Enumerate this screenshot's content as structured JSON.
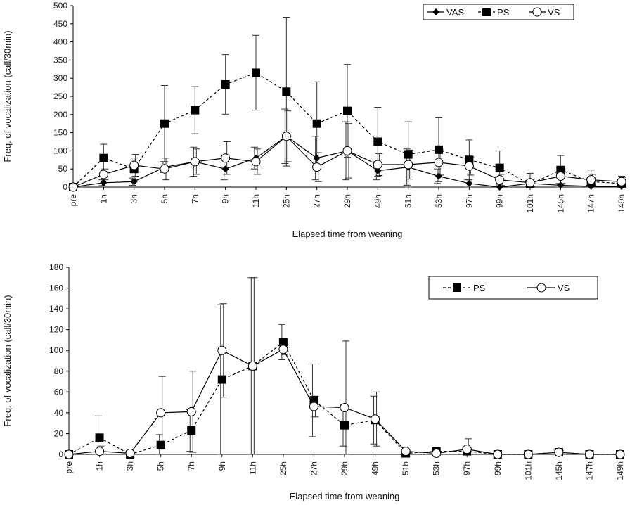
{
  "chart_data": [
    {
      "type": "line",
      "title": "",
      "xlabel": "Elapsed time from weaning",
      "ylabel": "Freq. of vocalization (call/30min)",
      "ylim": [
        0,
        500
      ],
      "yticks": [
        0,
        50,
        100,
        150,
        200,
        250,
        300,
        350,
        400,
        450,
        500
      ],
      "categories": [
        "pre",
        "1h",
        "3h",
        "5h",
        "7h",
        "9h",
        "11h",
        "25h",
        "27h",
        "29h",
        "49h",
        "51h",
        "53h",
        "97h",
        "99h",
        "101h",
        "145h",
        "147h",
        "149h"
      ],
      "legend_position": "top-right",
      "grid": false,
      "series": [
        {
          "name": "VAS",
          "marker": "diamond",
          "line": "solid",
          "values": [
            0,
            12,
            15,
            55,
            70,
            50,
            80,
            140,
            80,
            100,
            45,
            55,
            30,
            10,
            0,
            10,
            5,
            2,
            2
          ],
          "errors": [
            0,
            8,
            10,
            15,
            40,
            30,
            30,
            75,
            60,
            80,
            25,
            50,
            20,
            10,
            0,
            8,
            5,
            3,
            3
          ]
        },
        {
          "name": "PS",
          "marker": "square",
          "line": "dashed",
          "values": [
            0,
            80,
            50,
            175,
            212,
            283,
            315,
            263,
            175,
            210,
            125,
            90,
            103,
            75,
            53,
            8,
            47,
            15,
            10
          ],
          "errors": [
            0,
            38,
            30,
            105,
            65,
            82,
            103,
            205,
            115,
            128,
            95,
            90,
            88,
            55,
            47,
            30,
            40,
            32,
            20
          ]
        },
        {
          "name": "VS",
          "marker": "circle",
          "line": "solid",
          "values": [
            0,
            35,
            60,
            50,
            70,
            80,
            70,
            140,
            55,
            100,
            62,
            62,
            68,
            58,
            20,
            12,
            30,
            20,
            15
          ],
          "errors": [
            0,
            15,
            30,
            30,
            35,
            45,
            35,
            70,
            40,
            75,
            30,
            40,
            35,
            25,
            15,
            10,
            20,
            15,
            12
          ]
        }
      ]
    },
    {
      "type": "line",
      "title": "",
      "xlabel": "Elapsed time from weaning",
      "ylabel": "Freq. of vocalization (call/30min)",
      "ylim": [
        0,
        180
      ],
      "yticks": [
        0,
        20,
        40,
        60,
        80,
        100,
        120,
        140,
        160,
        180
      ],
      "categories": [
        "pre",
        "1h",
        "3h",
        "5h",
        "7h",
        "9h",
        "11h",
        "25h",
        "27h",
        "29h",
        "49h",
        "51h",
        "53h",
        "97h",
        "99h",
        "101h",
        "145h",
        "147h",
        "149h"
      ],
      "legend_position": "top-right",
      "grid": false,
      "series": [
        {
          "name": "PS",
          "marker": "square",
          "line": "dashed",
          "values": [
            0,
            16,
            0,
            9,
            23,
            72,
            85,
            108,
            52,
            28,
            33,
            1,
            3,
            3,
            0,
            0,
            2,
            0,
            0
          ],
          "errors": [
            0,
            21,
            0,
            10,
            20,
            72,
            85,
            17,
            35,
            20,
            23,
            1,
            2,
            3,
            0,
            0,
            2,
            0,
            0
          ]
        },
        {
          "name": "VS",
          "marker": "circle",
          "line": "solid",
          "values": [
            0,
            3,
            1,
            40,
            41,
            100,
            85,
            101,
            46,
            45,
            34,
            3,
            1,
            5,
            0,
            0,
            2,
            0,
            0
          ],
          "errors": [
            0,
            5,
            1,
            35,
            39,
            45,
            85,
            5,
            10,
            64,
            26,
            2,
            1,
            10,
            0,
            0,
            2,
            0,
            0
          ]
        }
      ]
    }
  ]
}
